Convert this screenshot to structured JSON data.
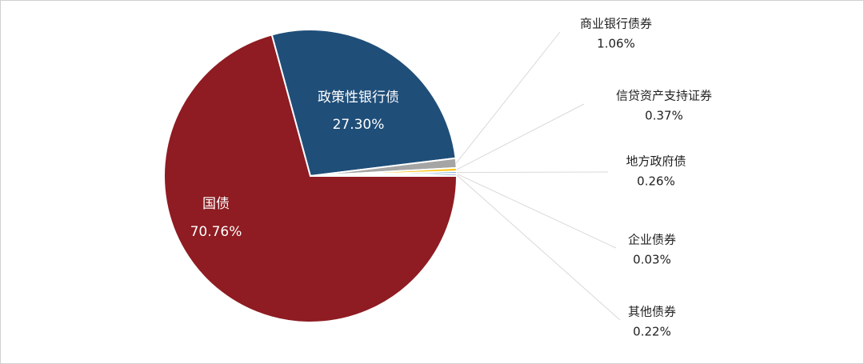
{
  "chart_data": {
    "type": "pie",
    "categories": [
      "国债",
      "政策性银行债",
      "商业银行债券",
      "信贷资产支持证券",
      "地方政府债",
      "企业债券",
      "其他债券"
    ],
    "values": [
      70.76,
      27.3,
      1.06,
      0.37,
      0.26,
      0.03,
      0.22
    ],
    "value_labels": [
      "70.76%",
      "27.30%",
      "1.06%",
      "0.37%",
      "0.26%",
      "0.03%",
      "0.22%"
    ],
    "colors": [
      "#8e1c22",
      "#1f4e79",
      "#a5a5a5",
      "#ffc000",
      "#5b9bd5",
      "#70ad47",
      "#264478"
    ]
  }
}
